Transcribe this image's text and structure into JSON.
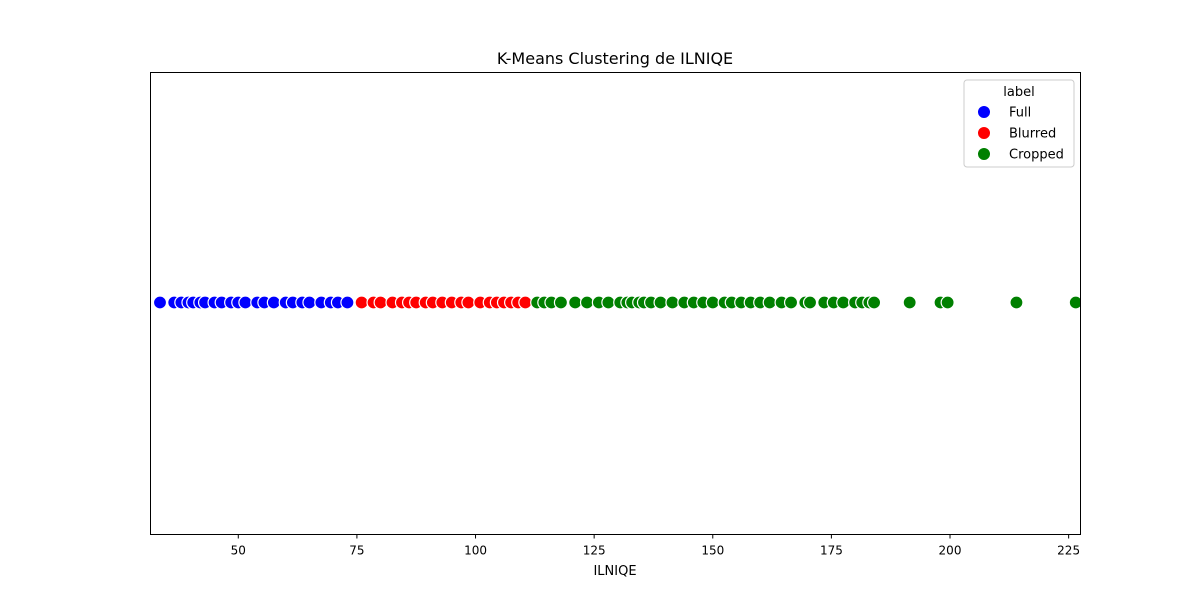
{
  "chart_data": {
    "type": "scatter",
    "title": "K-Means Clustering de ILNIQE",
    "xlabel": "ILNIQE",
    "ylabel": "",
    "xlim": [
      31.5,
      227.5
    ],
    "xticks": [
      50,
      75,
      100,
      125,
      150,
      175,
      200,
      225
    ],
    "y_axis_visible": false,
    "grid": false,
    "legend": {
      "title": "label",
      "placement": "top-right"
    },
    "series": [
      {
        "name": "Full",
        "color": "#0000ff",
        "x": [
          33.5,
          36.5,
          38,
          39.5,
          40.5,
          42,
          43,
          45,
          46.5,
          48.5,
          50,
          51.5,
          54,
          55.5,
          57.5,
          60,
          61.5,
          63.5,
          65,
          67.5,
          69.5,
          71,
          73
        ]
      },
      {
        "name": "Blurred",
        "color": "#ff0000",
        "x": [
          76,
          78.5,
          80,
          82.5,
          84.5,
          86,
          87.5,
          89.5,
          91,
          93,
          95,
          97,
          98.5,
          101,
          103,
          104.5,
          106,
          107.5,
          109,
          110.5
        ]
      },
      {
        "name": "Cropped",
        "color": "#008000",
        "x": [
          113,
          114.5,
          116,
          118,
          121,
          123.5,
          126,
          128,
          130.5,
          132,
          133,
          134.5,
          135.5,
          137,
          139,
          141.5,
          144,
          146,
          148,
          150,
          152.5,
          154,
          156,
          158,
          160,
          162,
          164.5,
          166.5,
          169.5,
          170.5,
          173.5,
          175.5,
          177.5,
          180,
          181.5,
          183,
          184,
          191.5,
          198,
          199.5,
          214,
          226.5
        ]
      }
    ]
  }
}
